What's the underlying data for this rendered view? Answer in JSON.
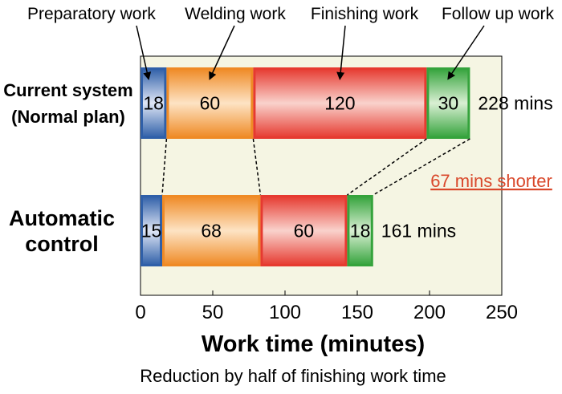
{
  "chart_data": {
    "type": "bar",
    "orientation": "horizontal",
    "stacked": true,
    "categories": [
      [
        "Current system",
        "(Normal plan)"
      ],
      [
        "Automatic",
        "control"
      ]
    ],
    "series": [
      {
        "name": "Preparatory work",
        "values": [
          18,
          15
        ]
      },
      {
        "name": "Welding work",
        "values": [
          60,
          68
        ]
      },
      {
        "name": "Finishing work",
        "values": [
          120,
          60
        ]
      },
      {
        "name": "Follow up work",
        "values": [
          30,
          18
        ]
      }
    ],
    "totals": [
      "228 mins",
      "161 mins"
    ],
    "annotation": "67 mins shorter",
    "xlabel": "Work time (minutes)",
    "xlim": [
      0,
      250
    ],
    "xticks": [
      "0",
      "50",
      "100",
      "150",
      "200",
      "250"
    ],
    "caption": "Reduction by half of finishing work time",
    "colors": {
      "Preparatory work": [
        "#2f5fa8",
        "#dfe6f5"
      ],
      "Welding work": [
        "#ef8a25",
        "#fde3c4"
      ],
      "Finishing work": [
        "#e63a30",
        "#f9d2cc"
      ],
      "Follow up work": [
        "#35a33c",
        "#d9efd3"
      ],
      "annotation": "#d9482b",
      "plot_background": "#f5f5e3"
    },
    "grid": false,
    "legend": "top"
  }
}
